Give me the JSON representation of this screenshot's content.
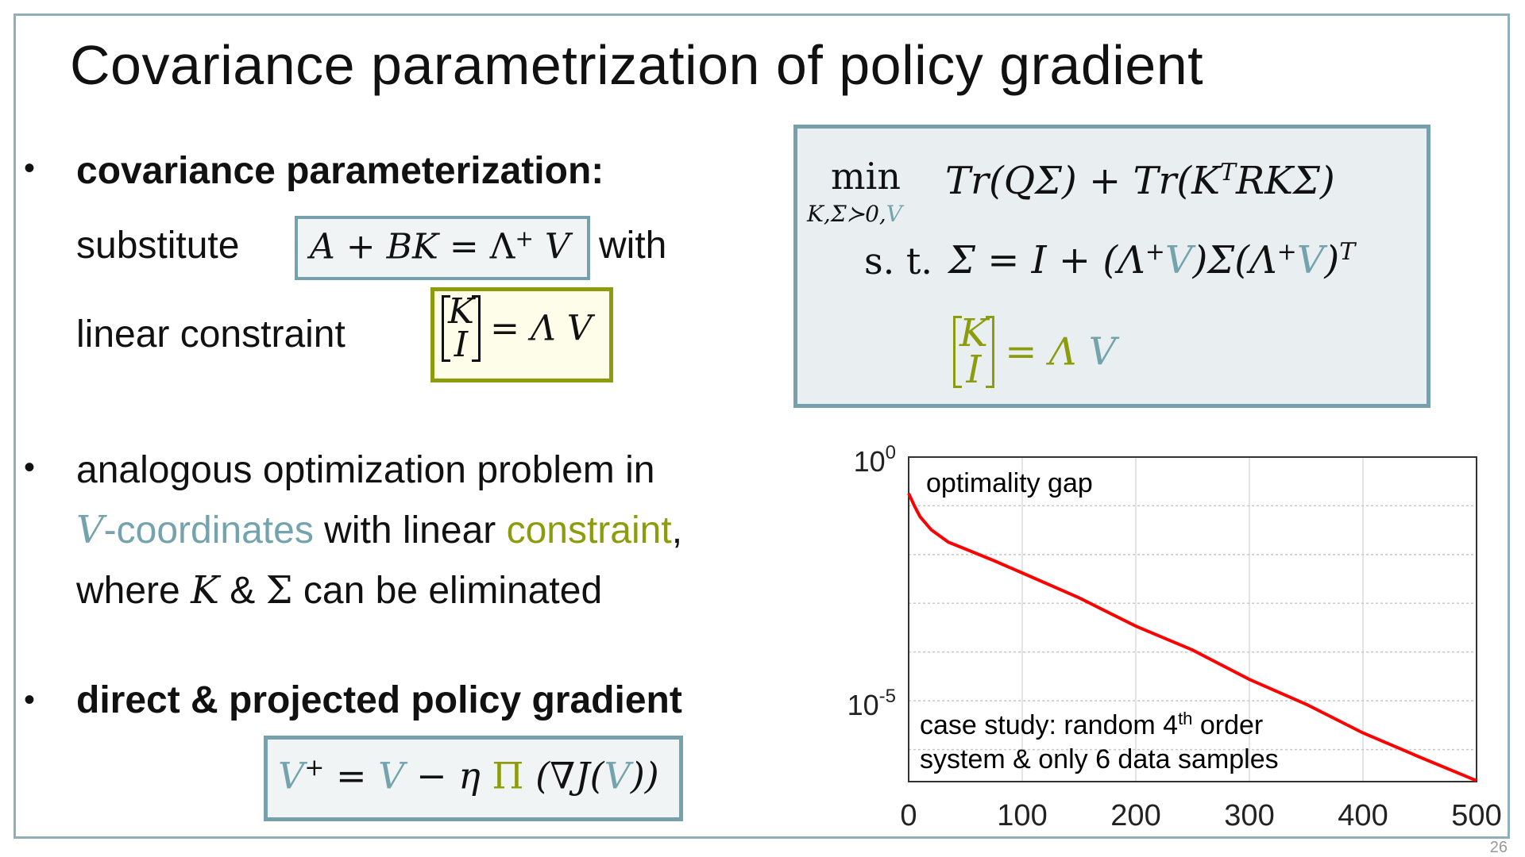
{
  "title": "Covariance parametrization of policy gradient",
  "bullet_symbol": "•",
  "bullet1": {
    "heading": "covariance parameterization:",
    "line1_pre": "substitute",
    "line1_formula": {
      "lhs": "A + BK",
      "eq": " = ",
      "rhs_lambda": "Λ",
      "rhs_sup": "+",
      "rhs_v": " V"
    },
    "line1_post": "with",
    "line2_pre": "linear constraint",
    "line2_formula": {
      "mat_top": "K",
      "mat_bottom": "I",
      "rhs": "= Λ V"
    }
  },
  "problem_box": {
    "min": "min",
    "min_sub": "K,Σ≻0,",
    "min_sub_v": "V",
    "objective": "Tr(QΣ) + Tr(K",
    "objective_sup": "T",
    "objective_end": "RKΣ)",
    "st": "s. t.",
    "constraint_a": "Σ = I + (Λ",
    "sup_plus": "+",
    "v": "V",
    "constraint_b": ")Σ(Λ",
    "constraint_c": ")",
    "sup_t": "T",
    "mat_top": "K",
    "mat_bottom": "I",
    "lin_rhs": "= Λ ",
    "lin_v": "V"
  },
  "bullet2": {
    "line1": "analogous optimization problem in",
    "line2_v": "V",
    "line2_coords": "-coordinates",
    "line2_mid": " with linear ",
    "line2_constraint": "constraint",
    "line2_end": ",",
    "line3_pre": "where ",
    "line3_k": "K",
    "line3_amp": " & ",
    "line3_sigma": "Σ",
    "line3_post": " can be eliminated"
  },
  "bullet3": {
    "heading": "direct & projected policy gradient",
    "formula": {
      "v1": "V",
      "sup": "+",
      "eq": " = ",
      "v2": "V",
      "minus_eta": " − η ",
      "pi": "Π",
      "grad": " (∇J(",
      "v3": "V",
      "close": "))"
    }
  },
  "colors": {
    "teal": "#74a3ad",
    "olive": "#8c9c0c",
    "curve": "#ff0000",
    "frame": "#8fb0b6"
  },
  "chart_data": {
    "type": "line",
    "annotation_top": "optimality gap",
    "annotation_bottom_1": "case study: random 4",
    "annotation_bottom_sup": "th",
    "annotation_bottom_1b": " order",
    "annotation_bottom_2": "system & only 6 data samples",
    "xlim": [
      0,
      500
    ],
    "ylim": [
      2.2e-07,
      1
    ],
    "yscale": "log",
    "grid": true,
    "x_ticks": [
      "0",
      "100",
      "200",
      "300",
      "400",
      "500"
    ],
    "y_ticks": [
      {
        "base": "10",
        "exp": "0"
      },
      {
        "base": "10",
        "exp": "-5"
      }
    ],
    "series": [
      {
        "x": [
          0,
          5,
          10,
          20,
          35,
          50,
          75,
          100,
          150,
          200,
          250,
          300,
          350,
          400,
          450,
          500
        ],
        "y": [
          0.18,
          0.1,
          0.06,
          0.032,
          0.018,
          0.013,
          0.0075,
          0.0042,
          0.0013,
          0.00034,
          0.00011,
          2.75e-05,
          8.5e-06,
          2.2e-06,
          7e-07,
          2.3e-07
        ]
      }
    ]
  },
  "page_number": "26"
}
